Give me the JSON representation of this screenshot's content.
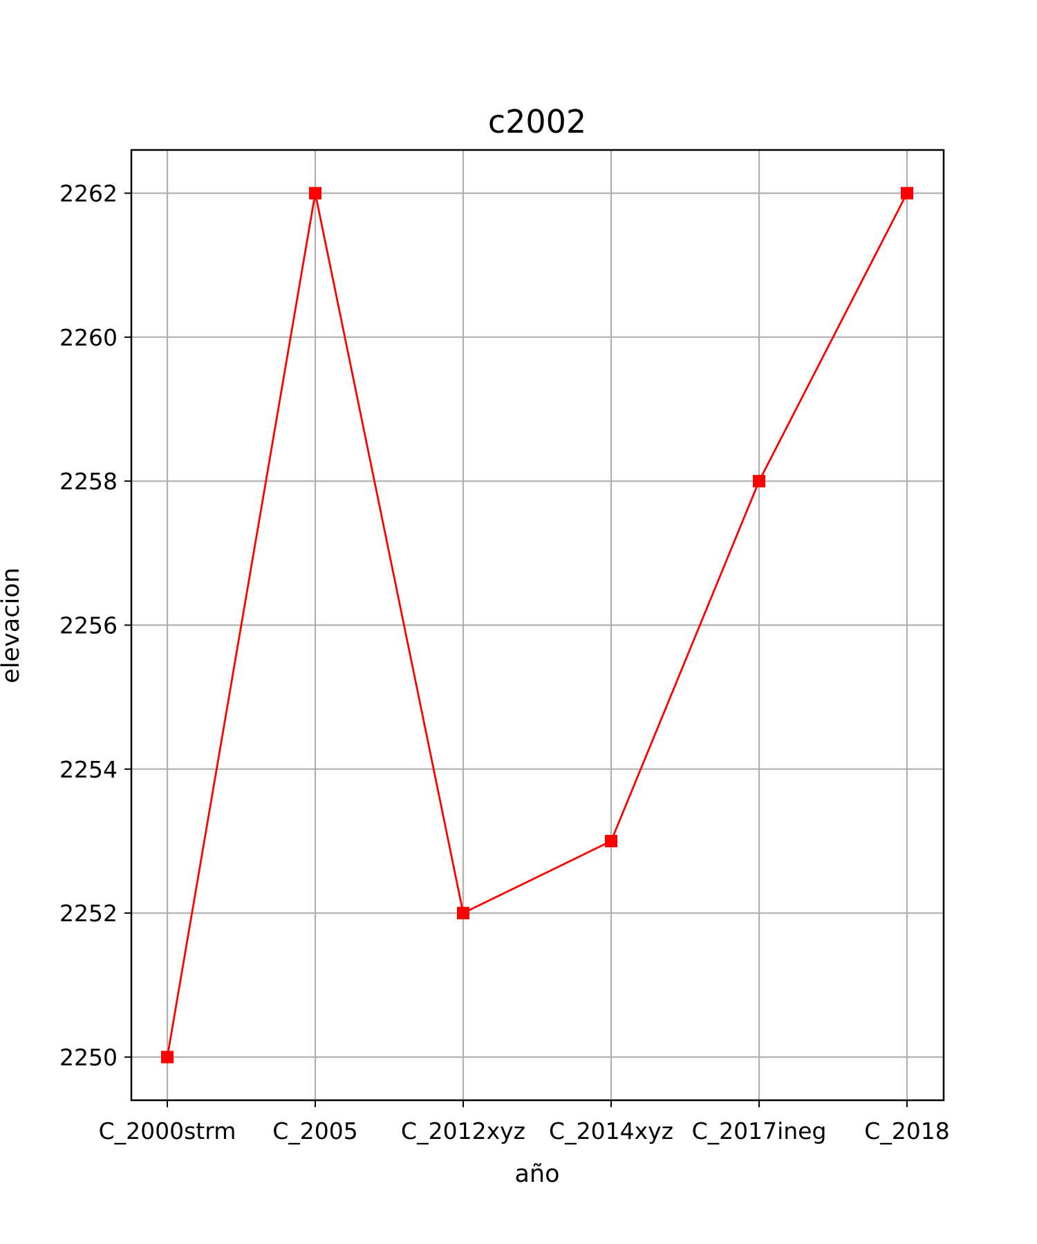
{
  "chart_data": {
    "type": "line",
    "title": "c2002",
    "xlabel": "año",
    "ylabel": "elevacion",
    "categories": [
      "C_2000strm",
      "C_2005",
      "C_2012xyz",
      "C_2014xyz",
      "C_2017ineg",
      "C_2018"
    ],
    "series": [
      {
        "values": [
          2250,
          2262,
          2252,
          2253,
          2258,
          2262
        ],
        "color": "#ff0000",
        "marker": "square"
      }
    ],
    "ylim": [
      2249.4,
      2262.6
    ],
    "yticks": [
      2250,
      2252,
      2254,
      2256,
      2258,
      2260,
      2262
    ],
    "ytick_labels": [
      "2250",
      "2252",
      "2254",
      "2256",
      "2258",
      "2260",
      "2262"
    ],
    "grid": true,
    "colors": {
      "line": "#ff0000",
      "grid": "#b0b0b0",
      "axes": "#000000"
    }
  }
}
